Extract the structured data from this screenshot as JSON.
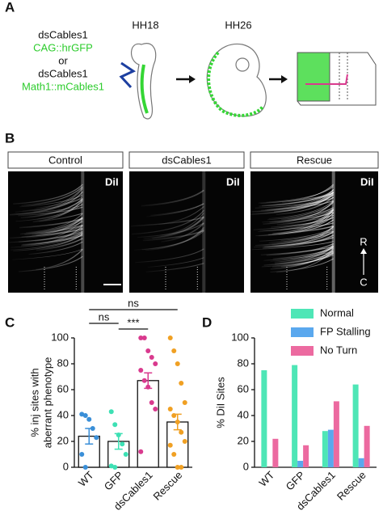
{
  "panel_labels": [
    "A",
    "B",
    "C",
    "D"
  ],
  "panel_a": {
    "lines": [
      "dsCables1",
      "CAG::hrGFP",
      "or",
      "dsCables1",
      "Math1::mCables1"
    ],
    "stages": [
      "HH18",
      "HH26"
    ]
  },
  "panel_b": {
    "conditions": [
      "Control",
      "dsCables1",
      "Rescue"
    ],
    "stain": [
      "DiI",
      "DiI",
      "DiI"
    ],
    "axis": [
      "R",
      "C"
    ]
  },
  "chart_data": [
    {
      "type": "bar_scatter",
      "y_label": [
        "% inj sites with",
        "aberrant phenotype"
      ],
      "categories": [
        "WT",
        "GFP",
        "dsCables1",
        "Rescue"
      ],
      "colors": [
        "#3a8fd8",
        "#3de0b4",
        "#d93a8e",
        "#f0a023"
      ],
      "values": [
        24,
        20,
        67,
        35
      ],
      "errors": [
        6,
        6,
        6,
        6
      ],
      "points": [
        [
          41,
          40,
          37,
          30,
          23,
          10,
          0
        ],
        [
          43,
          33,
          25,
          18,
          10,
          1,
          0
        ],
        [
          100,
          100,
          90,
          85,
          80,
          75,
          67,
          62,
          50,
          45,
          12
        ],
        [
          100,
          90,
          80,
          65,
          50,
          45,
          40,
          35,
          27,
          20,
          17,
          10,
          0,
          0
        ]
      ],
      "annotations": [
        "ns",
        "ns",
        "***"
      ],
      "ylim": [
        0,
        100
      ],
      "yticks": [
        0,
        20,
        40,
        60,
        80,
        100
      ]
    },
    {
      "type": "grouped_bar",
      "y_label": "% DiI Sites",
      "categories": [
        "WT",
        "GFP",
        "dsCables1",
        "Rescue"
      ],
      "series": [
        {
          "name": "Normal",
          "color": "#4ee6b6",
          "values": [
            75,
            79,
            28,
            64
          ]
        },
        {
          "name": "FP Stalling",
          "color": "#5aa8ee",
          "values": [
            0,
            5,
            29,
            7
          ]
        },
        {
          "name": "No Turn",
          "color": "#ec6aa0",
          "values": [
            22,
            17,
            51,
            32
          ]
        }
      ],
      "legend": "top-right",
      "ylim": [
        0,
        100
      ],
      "yticks": [
        0,
        20,
        40,
        60,
        80,
        100
      ]
    }
  ]
}
